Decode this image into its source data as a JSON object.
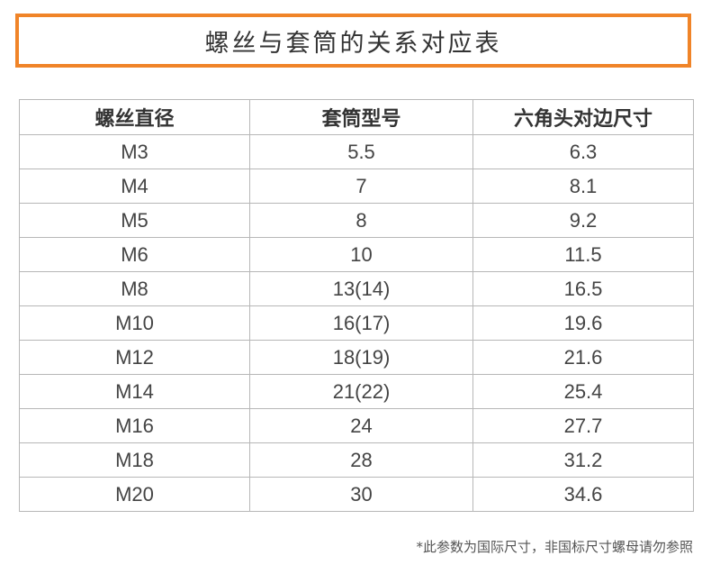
{
  "title": "螺丝与套筒的关系对应表",
  "colors": {
    "accent": "#f08428",
    "border": "#b7b7b7",
    "text": "#333333"
  },
  "table": {
    "headers": [
      "螺丝直径",
      "套筒型号",
      "六角头对边尺寸"
    ],
    "rows": [
      [
        "M3",
        "5.5",
        "6.3"
      ],
      [
        "M4",
        "7",
        "8.1"
      ],
      [
        "M5",
        "8",
        "9.2"
      ],
      [
        "M6",
        "10",
        "11.5"
      ],
      [
        "M8",
        "13(14)",
        "16.5"
      ],
      [
        "M10",
        "16(17)",
        "19.6"
      ],
      [
        "M12",
        "18(19)",
        "21.6"
      ],
      [
        "M14",
        "21(22)",
        "25.4"
      ],
      [
        "M16",
        "24",
        "27.7"
      ],
      [
        "M18",
        "28",
        "31.2"
      ],
      [
        "M20",
        "30",
        "34.6"
      ]
    ]
  },
  "footnote": "*此参数为国际尺寸，非国标尺寸螺母请勿参照"
}
